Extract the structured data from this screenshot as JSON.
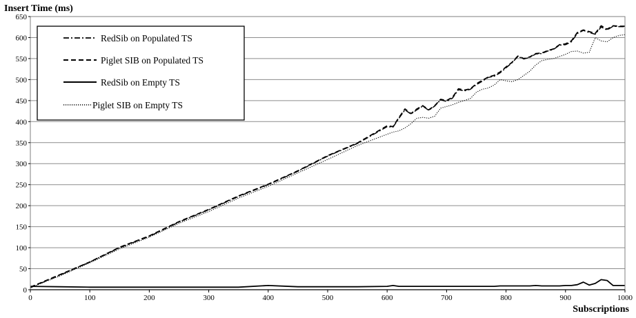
{
  "chart_data": {
    "type": "line",
    "ylabel": "Insert Time (ms)",
    "xlabel": "Subscriptions",
    "xlim": [
      0,
      1000
    ],
    "ylim": [
      0,
      650
    ],
    "x_ticks": [
      "0",
      "100",
      "200",
      "300",
      "400",
      "500",
      "600",
      "700",
      "800",
      "900",
      "1000"
    ],
    "y_ticks": [
      "0",
      "50",
      "100",
      "150",
      "200",
      "250",
      "300",
      "350",
      "400",
      "450",
      "500",
      "550",
      "600",
      "650"
    ],
    "grid": "horizontal",
    "legend_position": "top-left",
    "x": [
      0,
      50,
      100,
      150,
      200,
      250,
      300,
      350,
      400,
      450,
      500,
      550,
      600,
      610,
      620,
      630,
      640,
      650,
      660,
      670,
      680,
      690,
      700,
      710,
      720,
      730,
      740,
      750,
      760,
      770,
      780,
      790,
      800,
      810,
      820,
      830,
      840,
      850,
      860,
      870,
      880,
      890,
      900,
      910,
      920,
      930,
      940,
      950,
      960,
      970,
      980,
      990,
      1000
    ],
    "series": [
      {
        "name": "RedSib on Populated TS",
        "style": "dashdot",
        "values": [
          5,
          35,
          66,
          100,
          127,
          161,
          190,
          222,
          250,
          282,
          318,
          348,
          388,
          387,
          408,
          428,
          418,
          428,
          437,
          427,
          437,
          452,
          448,
          456,
          476,
          473,
          477,
          488,
          496,
          505,
          508,
          516,
          528,
          540,
          555,
          549,
          553,
          561,
          562,
          568,
          572,
          582,
          583,
          590,
          610,
          617,
          612,
          608,
          625,
          618,
          627,
          626,
          626
        ]
      },
      {
        "name": "Piglet SIB on Populated TS",
        "style": "dashed",
        "values": [
          6,
          36,
          66,
          101,
          128,
          162,
          191,
          223,
          251,
          283,
          319,
          349,
          390,
          388,
          410,
          430,
          419,
          430,
          438,
          428,
          438,
          453,
          450,
          458,
          478,
          475,
          478,
          490,
          498,
          506,
          510,
          518,
          530,
          541,
          556,
          550,
          554,
          562,
          563,
          569,
          573,
          583,
          585,
          592,
          612,
          618,
          614,
          610,
          628,
          620,
          628,
          627,
          627
        ]
      },
      {
        "name": "RedSib on Empty TS",
        "style": "solid",
        "values": [
          8,
          7,
          6,
          6,
          6,
          6,
          6,
          6,
          10,
          7,
          7,
          7,
          8,
          10,
          8,
          8,
          8,
          8,
          8,
          8,
          8,
          8,
          8,
          8,
          8,
          8,
          8,
          8,
          8,
          8,
          8,
          9,
          9,
          9,
          9,
          9,
          9,
          10,
          9,
          9,
          9,
          9,
          10,
          10,
          12,
          18,
          11,
          15,
          24,
          22,
          10,
          10,
          10
        ]
      },
      {
        "name": "Piglet SIB on Empty TS",
        "style": "dotted",
        "values": [
          5,
          33,
          64,
          97,
          125,
          158,
          186,
          218,
          246,
          278,
          310,
          343,
          370,
          375,
          378,
          385,
          395,
          408,
          410,
          408,
          413,
          432,
          436,
          440,
          446,
          450,
          455,
          470,
          477,
          480,
          487,
          500,
          497,
          495,
          500,
          510,
          520,
          535,
          545,
          548,
          550,
          555,
          560,
          567,
          568,
          563,
          565,
          600,
          592,
          590,
          600,
          605,
          607
        ]
      }
    ],
    "colors": {
      "lines": "#000000",
      "grid": "#8c8c8c",
      "background": "#ffffff"
    }
  }
}
